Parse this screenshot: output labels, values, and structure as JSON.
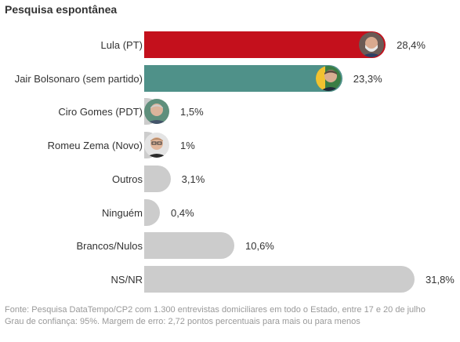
{
  "title": "Pesquisa espontânea",
  "chart_data": {
    "type": "bar",
    "orientation": "horizontal",
    "title": "Pesquisa espontânea",
    "categories": [
      "Lula (PT)",
      "Jair Bolsonaro (sem partido)",
      "Ciro Gomes (PDT)",
      "Romeu Zema (Novo)",
      "Outros",
      "Ninguém",
      "Brancos/Nulos",
      "NS/NR"
    ],
    "values": [
      28.4,
      23.3,
      1.5,
      1,
      3.1,
      0.4,
      10.6,
      31.8
    ],
    "value_labels": [
      "28,4%",
      "23,3%",
      "1,5%",
      "1%",
      "3,1%",
      "0,4%",
      "10,6%",
      "31,8%"
    ],
    "colors": [
      "#c4101c",
      "#4f9189",
      "#cccccc",
      "#cccccc",
      "#cccccc",
      "#cccccc",
      "#cccccc",
      "#cccccc"
    ],
    "avatars": [
      "lula-photo",
      "bolsonaro-photo",
      "ciro-photo",
      "zema-photo",
      null,
      null,
      null,
      null
    ],
    "xlim": [
      0,
      31.8
    ],
    "grid": false,
    "legend": "none"
  },
  "footer": {
    "line1": "Fonte: Pesquisa DataTempo/CP2 com 1.300 entrevistas domiciliares em todo o Estado, entre 17 e 20 de julho",
    "line2": "Grau de confiança: 95%. Margem de erro: 2,72 pontos percentuais para mais ou para menos"
  }
}
